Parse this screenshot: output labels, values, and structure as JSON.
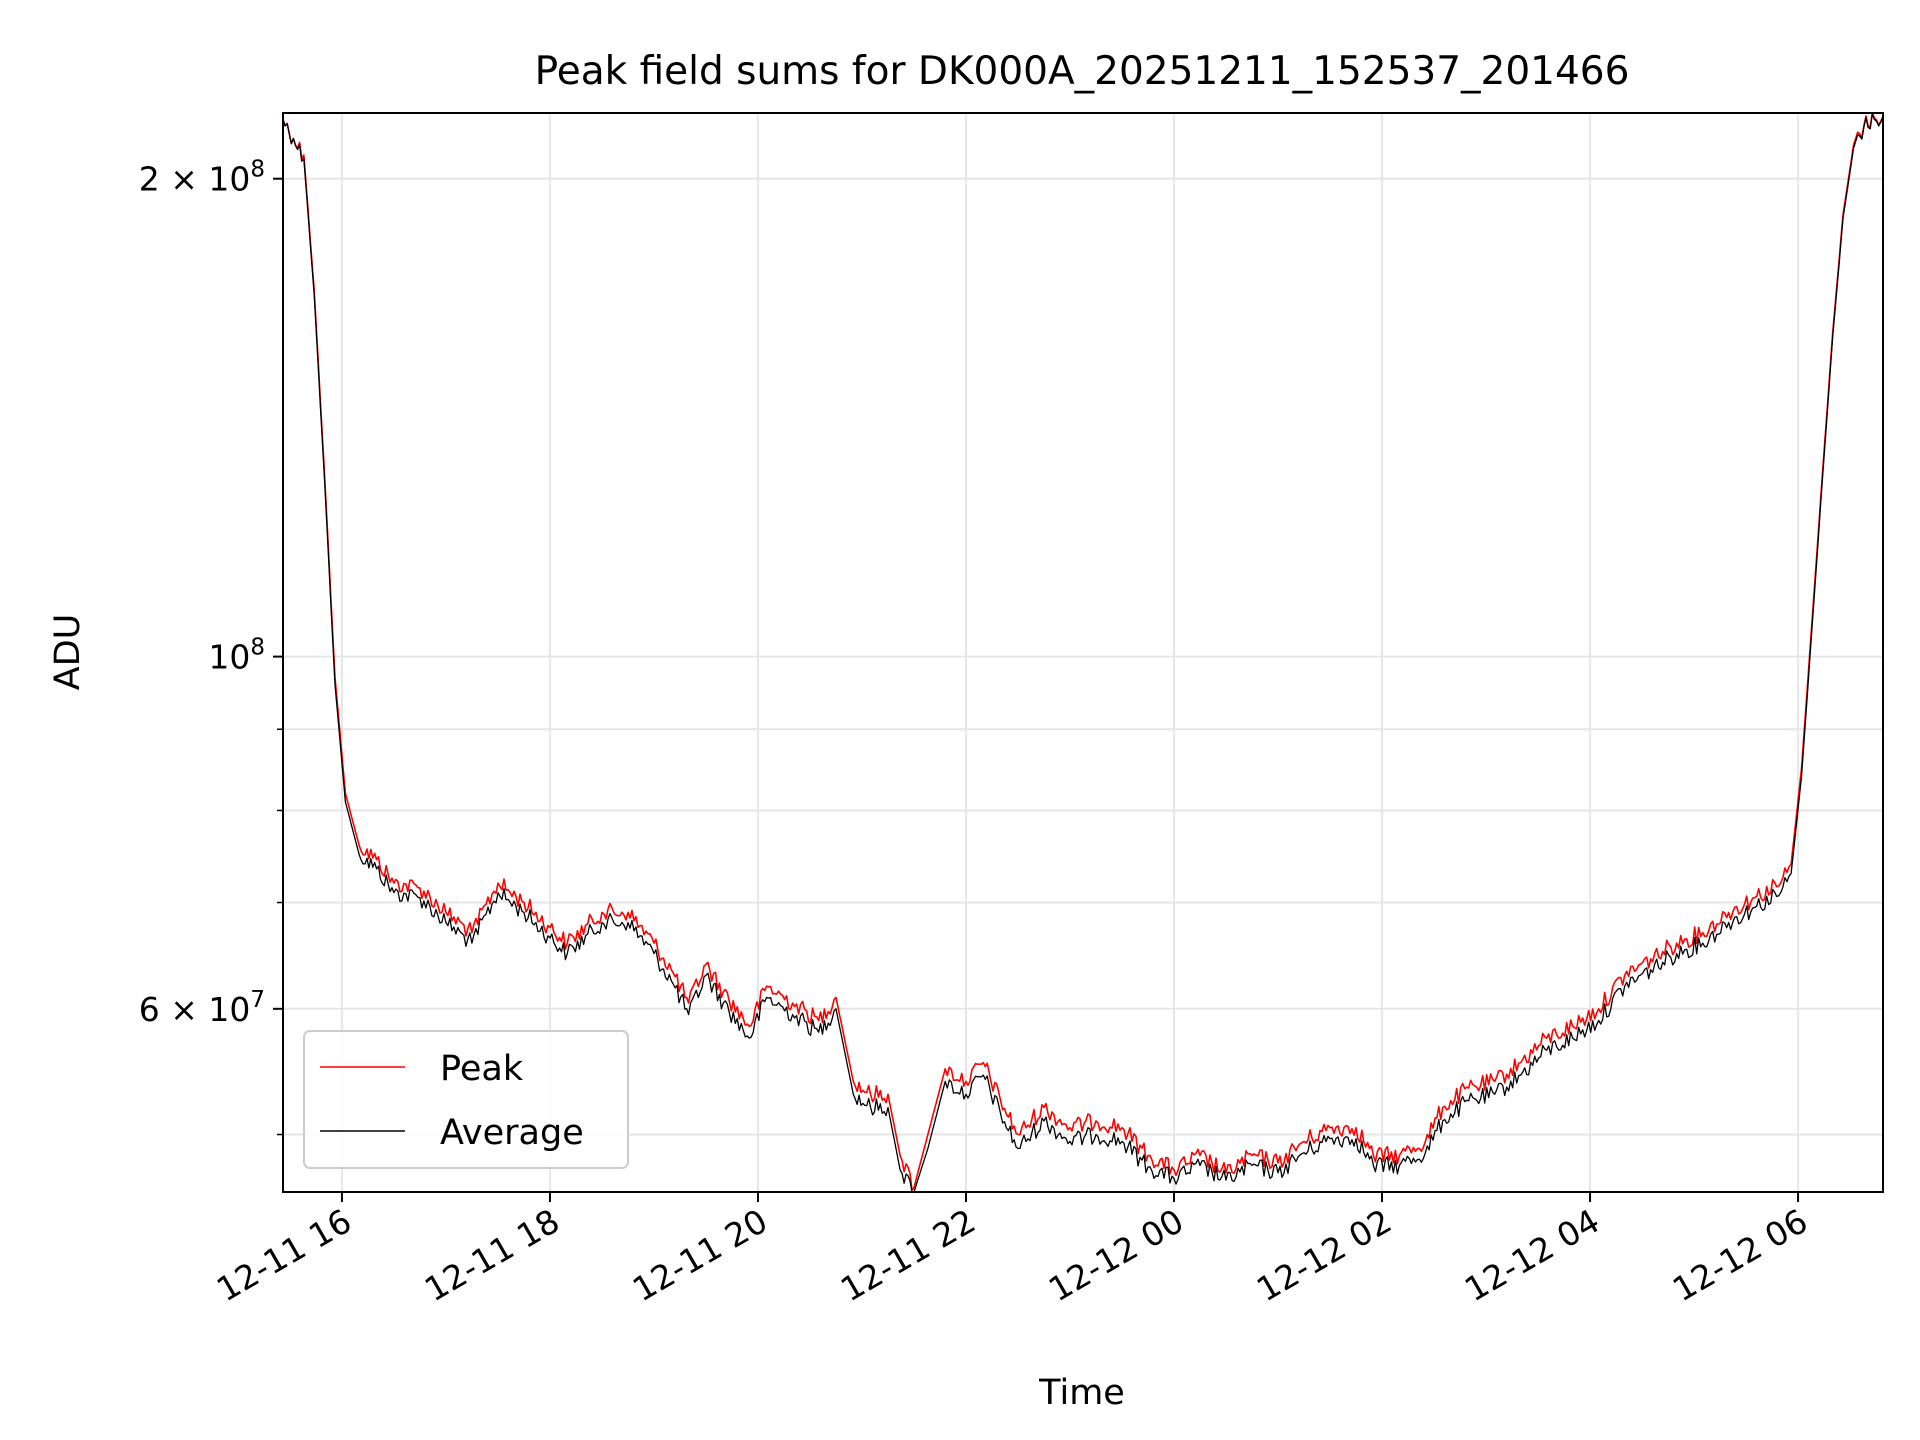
{
  "chart_data": {
    "type": "line",
    "title": "Peak field sums for DK000A_20251211_152537_201466",
    "xlabel": "Time",
    "ylabel": "ADU",
    "y_scale": "log",
    "xlim": [
      "2025-12-11 15:26",
      "2025-12-12 06:49"
    ],
    "ylim": [
      46000000,
      220000000
    ],
    "grid": true,
    "legend_position": "lower-left",
    "x_ticks": [
      {
        "time": "2025-12-11 16:00",
        "label": "12-11 16"
      },
      {
        "time": "2025-12-11 18:00",
        "label": "12-11 18"
      },
      {
        "time": "2025-12-11 20:00",
        "label": "12-11 20"
      },
      {
        "time": "2025-12-11 22:00",
        "label": "12-11 22"
      },
      {
        "time": "2025-12-12 00:00",
        "label": "12-12 00"
      },
      {
        "time": "2025-12-12 02:00",
        "label": "12-12 02"
      },
      {
        "time": "2025-12-12 04:00",
        "label": "12-12 04"
      },
      {
        "time": "2025-12-12 06:00",
        "label": "12-12 06"
      }
    ],
    "y_ticks": [
      {
        "value": 60000000,
        "mantissa": "6",
        "base": "10",
        "exp": "7"
      },
      {
        "value": 100000000,
        "mantissa": "",
        "base": "10",
        "exp": "8"
      },
      {
        "value": 200000000,
        "mantissa": "2",
        "base": "10",
        "exp": "8"
      }
    ],
    "y_minor_ticks": [
      50000000,
      70000000,
      80000000,
      90000000
    ],
    "series": [
      {
        "name": "Peak",
        "color": "#ff0000",
        "points": [
          [
            "2025-12-11 15:26",
            218000000
          ],
          [
            "2025-12-11 15:32",
            212000000
          ],
          [
            "2025-12-11 15:38",
            207000000
          ],
          [
            "2025-12-11 15:44",
            170000000
          ],
          [
            "2025-12-11 15:50",
            130000000
          ],
          [
            "2025-12-11 15:56",
            97000000
          ],
          [
            "2025-12-11 16:02",
            82000000
          ],
          [
            "2025-12-11 16:10",
            76000000
          ],
          [
            "2025-12-11 16:20",
            74500000
          ],
          [
            "2025-12-11 16:30",
            72000000
          ],
          [
            "2025-12-11 16:45",
            71500000
          ],
          [
            "2025-12-11 17:00",
            69000000
          ],
          [
            "2025-12-11 17:15",
            67000000
          ],
          [
            "2025-12-11 17:30",
            72000000
          ],
          [
            "2025-12-11 17:45",
            70000000
          ],
          [
            "2025-12-11 18:00",
            67500000
          ],
          [
            "2025-12-11 18:10",
            66000000
          ],
          [
            "2025-12-11 18:30",
            69000000
          ],
          [
            "2025-12-11 18:45",
            69000000
          ],
          [
            "2025-12-11 19:00",
            66000000
          ],
          [
            "2025-12-11 19:10",
            63500000
          ],
          [
            "2025-12-11 19:20",
            60500000
          ],
          [
            "2025-12-11 19:30",
            64000000
          ],
          [
            "2025-12-11 19:40",
            61500000
          ],
          [
            "2025-12-11 19:55",
            58500000
          ],
          [
            "2025-12-11 20:05",
            62000000
          ],
          [
            "2025-12-11 20:20",
            60500000
          ],
          [
            "2025-12-11 20:35",
            59000000
          ],
          [
            "2025-12-11 20:45",
            61000000
          ],
          [
            "2025-12-11 20:55",
            54000000
          ],
          [
            "2025-12-11 21:05",
            53000000
          ],
          [
            "2025-12-11 21:15",
            53000000
          ],
          [
            "2025-12-11 21:22",
            48500000
          ],
          [
            "2025-12-11 21:30",
            46300000
          ],
          [
            "2025-12-11 21:38",
            50000000
          ],
          [
            "2025-12-11 21:48",
            55000000
          ],
          [
            "2025-12-11 22:00",
            54000000
          ],
          [
            "2025-12-11 22:10",
            55500000
          ],
          [
            "2025-12-11 22:20",
            52500000
          ],
          [
            "2025-12-11 22:30",
            50000000
          ],
          [
            "2025-12-11 22:45",
            52000000
          ],
          [
            "2025-12-11 23:00",
            50500000
          ],
          [
            "2025-12-11 23:15",
            51000000
          ],
          [
            "2025-12-11 23:30",
            50500000
          ],
          [
            "2025-12-11 23:45",
            48500000
          ],
          [
            "2025-12-12 00:00",
            47500000
          ],
          [
            "2025-12-12 00:15",
            48500000
          ],
          [
            "2025-12-12 00:30",
            47300000
          ],
          [
            "2025-12-12 00:45",
            48500000
          ],
          [
            "2025-12-12 01:00",
            48000000
          ],
          [
            "2025-12-12 01:15",
            49500000
          ],
          [
            "2025-12-12 01:30",
            50500000
          ],
          [
            "2025-12-12 01:45",
            50500000
          ],
          [
            "2025-12-12 01:55",
            48500000
          ],
          [
            "2025-12-12 02:10",
            48500000
          ],
          [
            "2025-12-12 02:25",
            49500000
          ],
          [
            "2025-12-12 02:35",
            52000000
          ],
          [
            "2025-12-12 02:50",
            53500000
          ],
          [
            "2025-12-12 03:05",
            54000000
          ],
          [
            "2025-12-12 03:20",
            55500000
          ],
          [
            "2025-12-12 03:35",
            57500000
          ],
          [
            "2025-12-12 03:50",
            58500000
          ],
          [
            "2025-12-12 04:05",
            60000000
          ],
          [
            "2025-12-12 04:20",
            63000000
          ],
          [
            "2025-12-12 04:35",
            64500000
          ],
          [
            "2025-12-12 04:50",
            66000000
          ],
          [
            "2025-12-12 05:05",
            67000000
          ],
          [
            "2025-12-12 05:20",
            69000000
          ],
          [
            "2025-12-12 05:35",
            70500000
          ],
          [
            "2025-12-12 05:50",
            72000000
          ],
          [
            "2025-12-12 05:56",
            74000000
          ],
          [
            "2025-12-12 06:02",
            85000000
          ],
          [
            "2025-12-12 06:08",
            105000000
          ],
          [
            "2025-12-12 06:14",
            130000000
          ],
          [
            "2025-12-12 06:20",
            160000000
          ],
          [
            "2025-12-12 06:26",
            190000000
          ],
          [
            "2025-12-12 06:32",
            210000000
          ],
          [
            "2025-12-12 06:38",
            216000000
          ],
          [
            "2025-12-12 06:44",
            218500000
          ],
          [
            "2025-12-12 06:49",
            219000000
          ]
        ]
      },
      {
        "name": "Average",
        "color": "#000000",
        "points": [
          [
            "2025-12-11 15:26",
            218000000
          ],
          [
            "2025-12-11 15:32",
            212000000
          ],
          [
            "2025-12-11 15:38",
            206000000
          ],
          [
            "2025-12-11 15:44",
            169000000
          ],
          [
            "2025-12-11 15:50",
            129000000
          ],
          [
            "2025-12-11 15:56",
            96000000
          ],
          [
            "2025-12-11 16:02",
            81000000
          ],
          [
            "2025-12-11 16:10",
            75000000
          ],
          [
            "2025-12-11 16:20",
            73500000
          ],
          [
            "2025-12-11 16:30",
            71000000
          ],
          [
            "2025-12-11 16:45",
            70500000
          ],
          [
            "2025-12-11 17:00",
            68000000
          ],
          [
            "2025-12-11 17:15",
            66000000
          ],
          [
            "2025-12-11 17:30",
            71000000
          ],
          [
            "2025-12-11 17:45",
            69000000
          ],
          [
            "2025-12-11 18:00",
            66500000
          ],
          [
            "2025-12-11 18:10",
            65000000
          ],
          [
            "2025-12-11 18:30",
            68000000
          ],
          [
            "2025-12-11 18:45",
            68000000
          ],
          [
            "2025-12-11 19:00",
            65000000
          ],
          [
            "2025-12-11 19:10",
            62500000
          ],
          [
            "2025-12-11 19:20",
            59500000
          ],
          [
            "2025-12-11 19:30",
            63000000
          ],
          [
            "2025-12-11 19:40",
            60500000
          ],
          [
            "2025-12-11 19:55",
            57500000
          ],
          [
            "2025-12-11 20:05",
            61000000
          ],
          [
            "2025-12-11 20:20",
            59500000
          ],
          [
            "2025-12-11 20:35",
            58000000
          ],
          [
            "2025-12-11 20:45",
            60000000
          ],
          [
            "2025-12-11 20:55",
            53000000
          ],
          [
            "2025-12-11 21:05",
            52000000
          ],
          [
            "2025-12-11 21:15",
            52000000
          ],
          [
            "2025-12-11 21:22",
            47500000
          ],
          [
            "2025-12-11 21:30",
            46000000
          ],
          [
            "2025-12-11 21:38",
            49000000
          ],
          [
            "2025-12-11 21:48",
            54000000
          ],
          [
            "2025-12-11 22:00",
            53000000
          ],
          [
            "2025-12-11 22:10",
            54500000
          ],
          [
            "2025-12-11 22:20",
            51500000
          ],
          [
            "2025-12-11 22:30",
            49000000
          ],
          [
            "2025-12-11 22:45",
            51000000
          ],
          [
            "2025-12-11 23:00",
            49500000
          ],
          [
            "2025-12-11 23:15",
            50000000
          ],
          [
            "2025-12-11 23:30",
            49500000
          ],
          [
            "2025-12-11 23:45",
            47700000
          ],
          [
            "2025-12-12 00:00",
            46900000
          ],
          [
            "2025-12-12 00:15",
            47800000
          ],
          [
            "2025-12-12 00:30",
            46800000
          ],
          [
            "2025-12-12 00:45",
            47800000
          ],
          [
            "2025-12-12 01:00",
            47300000
          ],
          [
            "2025-12-12 01:15",
            48700000
          ],
          [
            "2025-12-12 01:30",
            49700000
          ],
          [
            "2025-12-12 01:45",
            49700000
          ],
          [
            "2025-12-12 01:55",
            47800000
          ],
          [
            "2025-12-12 02:10",
            47800000
          ],
          [
            "2025-12-12 02:25",
            48700000
          ],
          [
            "2025-12-12 02:35",
            51000000
          ],
          [
            "2025-12-12 02:50",
            52500000
          ],
          [
            "2025-12-12 03:05",
            53000000
          ],
          [
            "2025-12-12 03:20",
            54500000
          ],
          [
            "2025-12-12 03:35",
            56500000
          ],
          [
            "2025-12-12 03:50",
            57500000
          ],
          [
            "2025-12-12 04:05",
            59000000
          ],
          [
            "2025-12-12 04:20",
            62000000
          ],
          [
            "2025-12-12 04:35",
            63500000
          ],
          [
            "2025-12-12 04:50",
            65000000
          ],
          [
            "2025-12-12 05:05",
            66000000
          ],
          [
            "2025-12-12 05:20",
            68000000
          ],
          [
            "2025-12-12 05:35",
            69500000
          ],
          [
            "2025-12-12 05:50",
            71000000
          ],
          [
            "2025-12-12 05:56",
            73000000
          ],
          [
            "2025-12-12 06:02",
            84000000
          ],
          [
            "2025-12-12 06:08",
            104000000
          ],
          [
            "2025-12-12 06:14",
            129000000
          ],
          [
            "2025-12-12 06:20",
            159000000
          ],
          [
            "2025-12-12 06:26",
            189000000
          ],
          [
            "2025-12-12 06:32",
            209000000
          ],
          [
            "2025-12-12 06:38",
            215500000
          ],
          [
            "2025-12-12 06:44",
            218000000
          ],
          [
            "2025-12-12 06:49",
            218800000
          ]
        ]
      }
    ]
  }
}
